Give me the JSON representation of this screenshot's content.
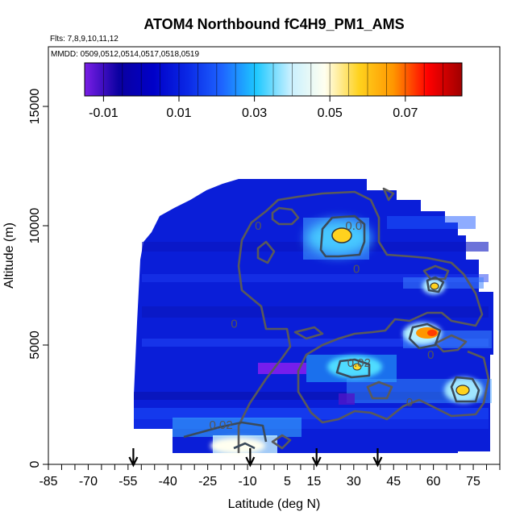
{
  "chart_data": {
    "type": "heatmap",
    "title": "ATOM4 Northbound fC4H9_PM1_AMS",
    "subtitle_flights": "Flts: 7,8,9,10,11,12",
    "subtitle_dates": "MMDD: 0509,0512,0514,0517,0518,0519",
    "xlabel": "Latitude (deg N)",
    "ylabel": "Altitude (m)",
    "xlim": [
      -85,
      85
    ],
    "ylim": [
      0,
      17500
    ],
    "x_tick_labels": [
      "-85",
      "-70",
      "-55",
      "-40",
      "-25",
      "-10",
      "5",
      "15",
      "30",
      "45",
      "60",
      "75"
    ],
    "x_tick_values": [
      -85,
      -70,
      -55,
      -40,
      -25,
      -10,
      5,
      15,
      30,
      45,
      60,
      75
    ],
    "y_tick_labels": [
      "0",
      "5000",
      "10000",
      "15000"
    ],
    "y_tick_values": [
      0,
      5000,
      10000,
      15000
    ],
    "colorbar": {
      "range": [
        -0.015,
        0.085
      ],
      "tick_labels": [
        "-0.01",
        "0.01",
        "0.03",
        "0.05",
        "0.07"
      ],
      "tick_values": [
        -0.01,
        0.01,
        0.03,
        0.05,
        0.07
      ],
      "colors": [
        "#7a1ee6",
        "#0a00a0",
        "#0000c8",
        "#0a28e6",
        "#1e64ff",
        "#1ec8ff",
        "#c8f0ff",
        "#fffff0",
        "#ffd21e",
        "#ff9600",
        "#ff0000",
        "#a00000"
      ]
    },
    "flight_arrows_lat": [
      -53,
      -9,
      16,
      39
    ],
    "contour_labels": [
      {
        "text": "0.02",
        "lat": -20,
        "alt": 1650
      },
      {
        "text": "0.02",
        "lat": 32,
        "alt": 4250
      },
      {
        "text": "0.0",
        "lat": 30,
        "alt": 10000
      },
      {
        "text": "0",
        "lat": -6,
        "alt": 10000
      },
      {
        "text": "0",
        "lat": 31,
        "alt": 8200
      },
      {
        "text": "0",
        "lat": -15,
        "alt": 5900
      },
      {
        "text": "0",
        "lat": 59,
        "alt": 4600
      },
      {
        "text": "0",
        "lat": 51,
        "alt": 2600
      }
    ],
    "hotspots": [
      {
        "lat": 30,
        "alt": 9700,
        "peak": 0.06
      },
      {
        "lat": 60,
        "alt": 7700,
        "peak": 0.055
      },
      {
        "lat": 56,
        "alt": 5700,
        "peak": 0.075
      },
      {
        "lat": 70,
        "alt": 3200,
        "peak": 0.058
      },
      {
        "lat": 31,
        "alt": 4200,
        "peak": 0.045
      },
      {
        "lat": -10,
        "alt": 700,
        "peak": 0.035
      }
    ]
  }
}
